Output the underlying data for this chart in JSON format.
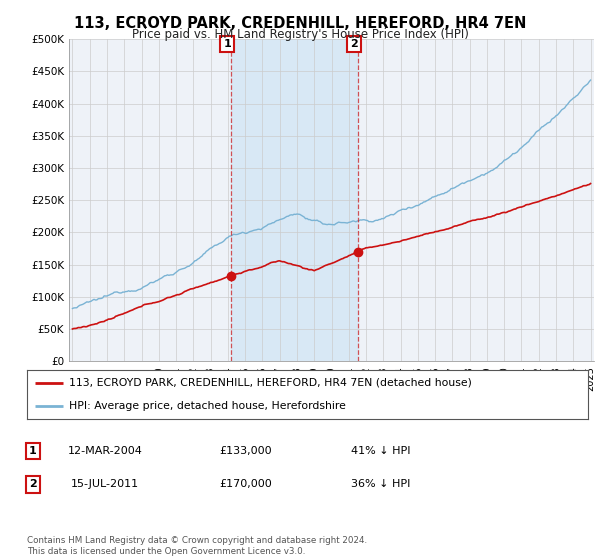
{
  "title": "113, ECROYD PARK, CREDENHILL, HEREFORD, HR4 7EN",
  "subtitle": "Price paid vs. HM Land Registry's House Price Index (HPI)",
  "ylim": [
    0,
    500000
  ],
  "yticks": [
    0,
    50000,
    100000,
    150000,
    200000,
    250000,
    300000,
    350000,
    400000,
    450000,
    500000
  ],
  "ytick_labels": [
    "£0",
    "£50K",
    "£100K",
    "£150K",
    "£200K",
    "£250K",
    "£300K",
    "£350K",
    "£400K",
    "£450K",
    "£500K"
  ],
  "hpi_color": "#7ab3d4",
  "price_color": "#cc1111",
  "purchase1_date": 2004.2,
  "purchase1_price": 133000,
  "purchase2_date": 2011.54,
  "purchase2_price": 170000,
  "legend_line1": "113, ECROYD PARK, CREDENHILL, HEREFORD, HR4 7EN (detached house)",
  "legend_line2": "HPI: Average price, detached house, Herefordshire",
  "table_row1": [
    "1",
    "12-MAR-2004",
    "£133,000",
    "41% ↓ HPI"
  ],
  "table_row2": [
    "2",
    "15-JUL-2011",
    "£170,000",
    "36% ↓ HPI"
  ],
  "footer": "Contains HM Land Registry data © Crown copyright and database right 2024.\nThis data is licensed under the Open Government Licence v3.0.",
  "background_color": "#ffffff",
  "plot_bg_color": "#eef2f8",
  "shade_color": "#d8e8f5",
  "grid_color": "#cccccc",
  "xstart": 1995,
  "xend": 2025
}
